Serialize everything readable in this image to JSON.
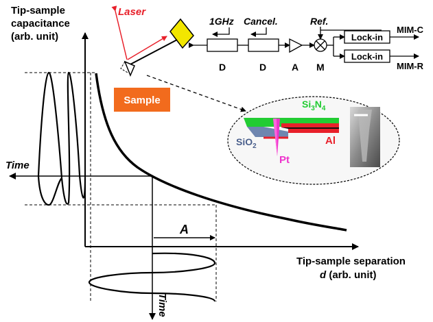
{
  "labels": {
    "y_axis_line1": "Tip-sample",
    "y_axis_line2": "capacitance",
    "y_axis_line3": "(arb. unit)",
    "x_axis_line1": "Tip-sample separation",
    "x_axis_line2_d": "d",
    "x_axis_line2_rest": " (arb. unit)",
    "time_left": "Time",
    "time_bottom": "Time",
    "amplitude": "A",
    "laser": "Laser",
    "sample": "Sample"
  },
  "circuit": {
    "freq": "1GHz",
    "cancel": "Cancel.",
    "ref": "Ref.",
    "d1": "D",
    "d2": "D",
    "amp": "A",
    "mixer": "M",
    "lockin1": "Lock-in",
    "lockin2": "Lock-in",
    "out_c": "MIM-C",
    "out_r": "MIM-R"
  },
  "inset": {
    "si3n4_main": "Si",
    "si3n4_sub1": "3",
    "si3n4_mid": "N",
    "si3n4_sub2": "4",
    "sio2_main": "SiO",
    "sio2_sub": "2",
    "al": "Al",
    "pt": "Pt"
  },
  "colors": {
    "laser": "#e8202a",
    "sample_box": "#f26b1d",
    "cantilever_chip": "#f2e600",
    "si3n4": "#22cc33",
    "al": "#e8202a",
    "sio2": "#6f86b0",
    "pt": "#ee33cc"
  }
}
